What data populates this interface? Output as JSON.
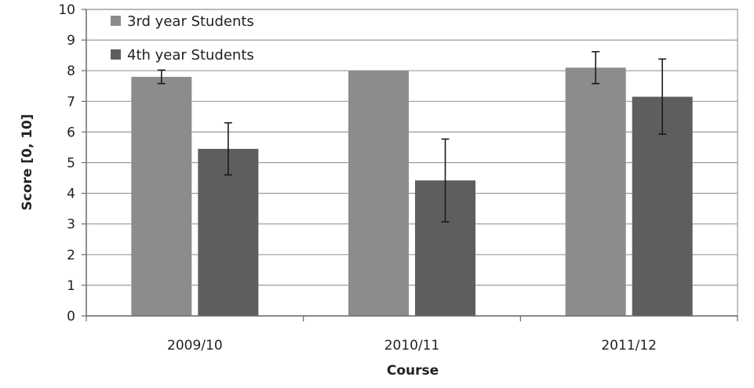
{
  "chart_data": {
    "type": "bar",
    "categories": [
      "2009/10",
      "2010/11",
      "2011/12"
    ],
    "series": [
      {
        "name": "3rd year Students",
        "color": "#8c8c8c",
        "values": [
          7.8,
          8.0,
          8.1
        ],
        "error_low": [
          7.58,
          null,
          7.58
        ],
        "error_high": [
          8.02,
          null,
          8.62
        ]
      },
      {
        "name": "4th year Students",
        "color": "#5e5e5e",
        "values": [
          5.45,
          4.42,
          7.15
        ],
        "error_low": [
          4.6,
          3.07,
          5.93
        ],
        "error_high": [
          6.3,
          5.77,
          8.38
        ]
      }
    ],
    "xlabel": "Course",
    "ylabel": "Score [0, 10]",
    "ylim": [
      0,
      10
    ],
    "yticks": [
      "0",
      "1",
      "2",
      "3",
      "4",
      "5",
      "6",
      "7",
      "8",
      "9",
      "10"
    ],
    "grid": true,
    "legend_position": "top-left"
  }
}
